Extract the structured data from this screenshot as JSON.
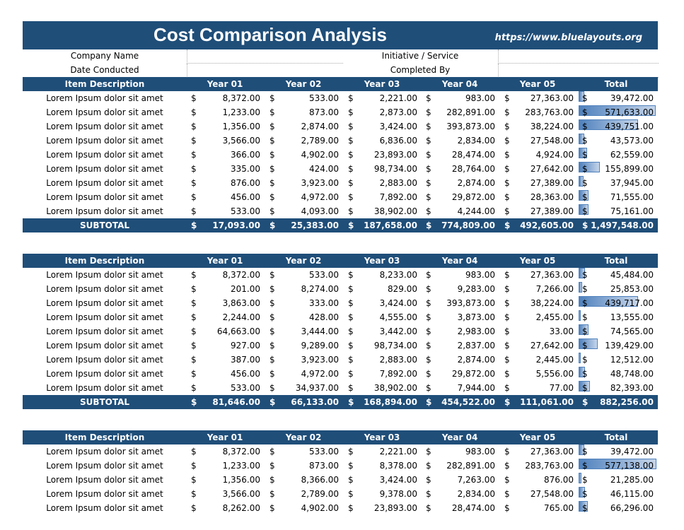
{
  "title": "Cost Comparison Analysis",
  "url": "https://www.bluelayouts.org",
  "info": {
    "company_label": "Company Name",
    "date_label": "Date Conducted",
    "initiative_label": "Initiative / Service",
    "completed_label": "Completed By"
  },
  "headers": [
    "Item Description",
    "Year 01",
    "Year 02",
    "Year 03",
    "Year 04",
    "Year 05",
    "Total"
  ],
  "currency": "$",
  "subtotal_label": "SUBTOTAL",
  "max_total": 577138,
  "tables": [
    {
      "rows": [
        {
          "desc": "Lorem Ipsum dolor sit amet",
          "y": [
            "8,372.00",
            "533.00",
            "2,221.00",
            "983.00",
            "27,363.00"
          ],
          "total": "39,472.00",
          "tv": 39472
        },
        {
          "desc": "Lorem Ipsum dolor sit amet",
          "y": [
            "1,233.00",
            "873.00",
            "2,873.00",
            "282,891.00",
            "283,763.00"
          ],
          "total": "571,633.00",
          "tv": 571633
        },
        {
          "desc": "Lorem Ipsum dolor sit amet",
          "y": [
            "1,356.00",
            "2,874.00",
            "3,424.00",
            "393,873.00",
            "38,224.00"
          ],
          "total": "439,751.00",
          "tv": 439751
        },
        {
          "desc": "Lorem Ipsum dolor sit amet",
          "y": [
            "3,566.00",
            "2,789.00",
            "6,836.00",
            "2,834.00",
            "27,548.00"
          ],
          "total": "43,573.00",
          "tv": 43573
        },
        {
          "desc": "Lorem Ipsum dolor sit amet",
          "y": [
            "366.00",
            "4,902.00",
            "23,893.00",
            "28,474.00",
            "4,924.00"
          ],
          "total": "62,559.00",
          "tv": 62559
        },
        {
          "desc": "Lorem Ipsum dolor sit amet",
          "y": [
            "335.00",
            "424.00",
            "98,734.00",
            "28,764.00",
            "27,642.00"
          ],
          "total": "155,899.00",
          "tv": 155899
        },
        {
          "desc": "Lorem Ipsum dolor sit amet",
          "y": [
            "876.00",
            "3,923.00",
            "2,883.00",
            "2,874.00",
            "27,389.00"
          ],
          "total": "37,945.00",
          "tv": 37945
        },
        {
          "desc": "Lorem Ipsum dolor sit amet",
          "y": [
            "456.00",
            "4,972.00",
            "7,892.00",
            "29,872.00",
            "28,363.00"
          ],
          "total": "71,555.00",
          "tv": 71555
        },
        {
          "desc": "Lorem Ipsum dolor sit amet",
          "y": [
            "533.00",
            "4,093.00",
            "38,902.00",
            "4,244.00",
            "27,389.00"
          ],
          "total": "75,161.00",
          "tv": 75161
        }
      ],
      "subtotal": {
        "y": [
          "17,093.00",
          "25,383.00",
          "187,658.00",
          "774,809.00",
          "492,605.00"
        ],
        "total": "1,497,548.00"
      }
    },
    {
      "rows": [
        {
          "desc": "Lorem Ipsum dolor sit amet",
          "y": [
            "8,372.00",
            "533.00",
            "8,233.00",
            "983.00",
            "27,363.00"
          ],
          "total": "45,484.00",
          "tv": 45484
        },
        {
          "desc": "Lorem Ipsum dolor sit amet",
          "y": [
            "201.00",
            "8,274.00",
            "829.00",
            "9,283.00",
            "7,266.00"
          ],
          "total": "25,853.00",
          "tv": 25853
        },
        {
          "desc": "Lorem Ipsum dolor sit amet",
          "y": [
            "3,863.00",
            "333.00",
            "3,424.00",
            "393,873.00",
            "38,224.00"
          ],
          "total": "439,717.00",
          "tv": 439717
        },
        {
          "desc": "Lorem Ipsum dolor sit amet",
          "y": [
            "2,244.00",
            "428.00",
            "4,555.00",
            "3,873.00",
            "2,455.00"
          ],
          "total": "13,555.00",
          "tv": 13555
        },
        {
          "desc": "Lorem Ipsum dolor sit amet",
          "y": [
            "64,663.00",
            "3,444.00",
            "3,442.00",
            "2,983.00",
            "33.00"
          ],
          "total": "74,565.00",
          "tv": 74565
        },
        {
          "desc": "Lorem Ipsum dolor sit amet",
          "y": [
            "927.00",
            "9,289.00",
            "98,734.00",
            "2,837.00",
            "27,642.00"
          ],
          "total": "139,429.00",
          "tv": 139429
        },
        {
          "desc": "Lorem Ipsum dolor sit amet",
          "y": [
            "387.00",
            "3,923.00",
            "2,883.00",
            "2,874.00",
            "2,445.00"
          ],
          "total": "12,512.00",
          "tv": 12512
        },
        {
          "desc": "Lorem Ipsum dolor sit amet",
          "y": [
            "456.00",
            "4,972.00",
            "7,892.00",
            "29,872.00",
            "5,556.00"
          ],
          "total": "48,748.00",
          "tv": 48748
        },
        {
          "desc": "Lorem Ipsum dolor sit amet",
          "y": [
            "533.00",
            "34,937.00",
            "38,902.00",
            "7,944.00",
            "77.00"
          ],
          "total": "82,393.00",
          "tv": 82393
        }
      ],
      "subtotal": {
        "y": [
          "81,646.00",
          "66,133.00",
          "168,894.00",
          "454,522.00",
          "111,061.00"
        ],
        "total": "882,256.00"
      }
    },
    {
      "rows": [
        {
          "desc": "Lorem Ipsum dolor sit amet",
          "y": [
            "8,372.00",
            "533.00",
            "2,221.00",
            "983.00",
            "27,363.00"
          ],
          "total": "39,472.00",
          "tv": 39472
        },
        {
          "desc": "Lorem Ipsum dolor sit amet",
          "y": [
            "1,233.00",
            "873.00",
            "8,378.00",
            "282,891.00",
            "283,763.00"
          ],
          "total": "577,138.00",
          "tv": 577138
        },
        {
          "desc": "Lorem Ipsum dolor sit amet",
          "y": [
            "1,356.00",
            "8,366.00",
            "3,424.00",
            "7,263.00",
            "876.00"
          ],
          "total": "21,285.00",
          "tv": 21285
        },
        {
          "desc": "Lorem Ipsum dolor sit amet",
          "y": [
            "3,566.00",
            "2,789.00",
            "9,378.00",
            "2,834.00",
            "27,548.00"
          ],
          "total": "46,115.00",
          "tv": 46115
        },
        {
          "desc": "Lorem Ipsum dolor sit amet",
          "y": [
            "8,262.00",
            "4,902.00",
            "23,893.00",
            "28,474.00",
            "765.00"
          ],
          "total": "66,296.00",
          "tv": 66296
        }
      ]
    }
  ]
}
